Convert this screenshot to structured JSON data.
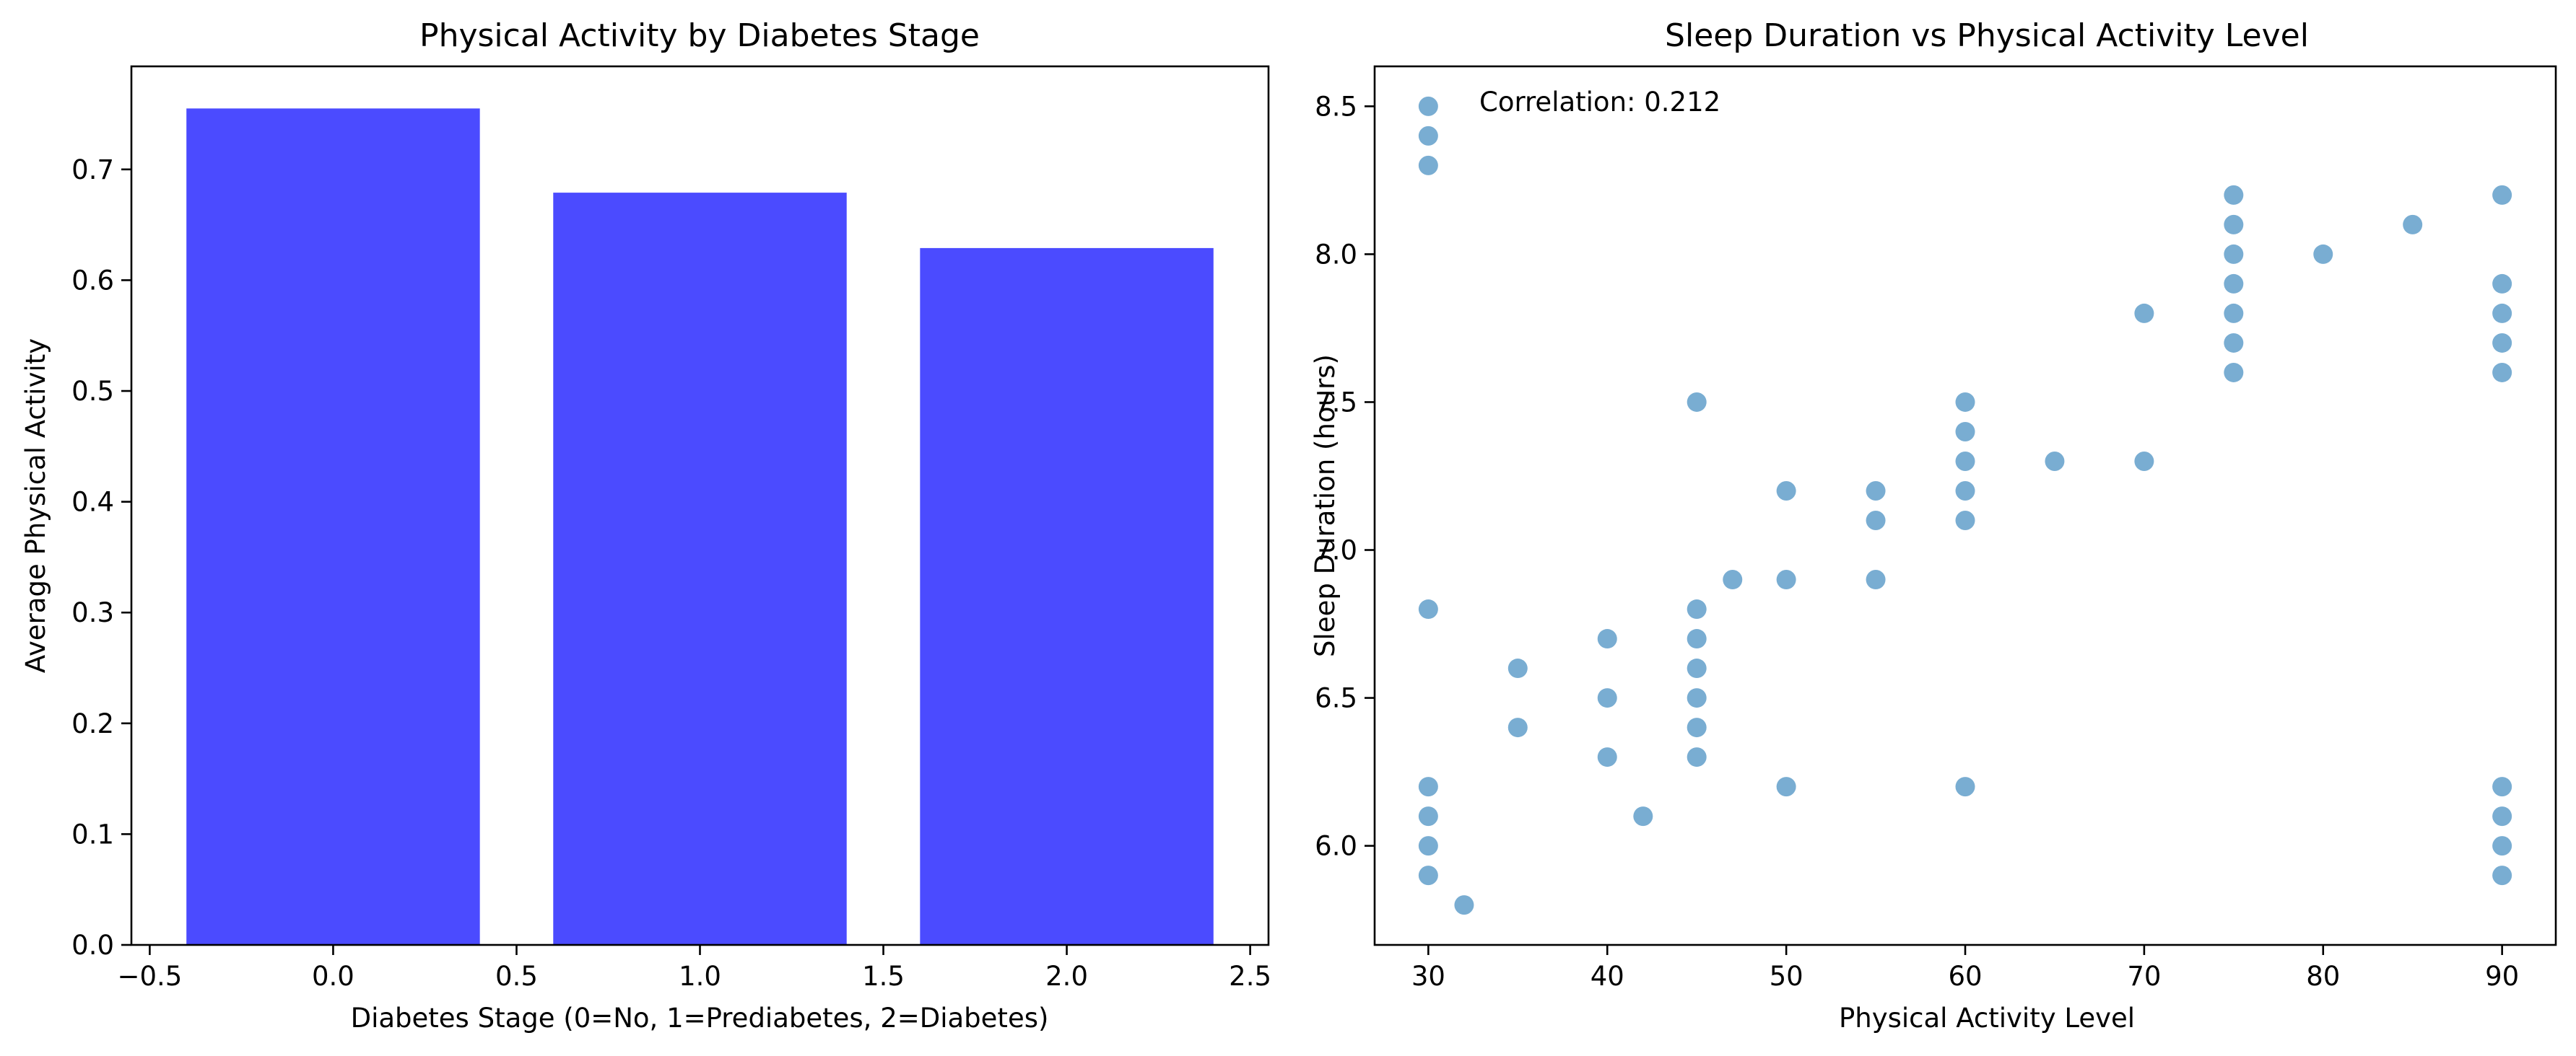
{
  "chart_data": [
    {
      "type": "bar",
      "title": "Physical Activity by Diabetes Stage",
      "xlabel": "Diabetes Stage (0=No, 1=Prediabetes, 2=Diabetes)",
      "ylabel": "Average Physical Activity",
      "x": [
        0,
        1,
        2
      ],
      "values": [
        0.755,
        0.679,
        0.629
      ],
      "bar_width": 0.8,
      "xlim": [
        -0.55,
        2.55
      ],
      "ylim": [
        0,
        0.793
      ],
      "xticks": [
        -0.5,
        0.0,
        0.5,
        1.0,
        1.5,
        2.0,
        2.5
      ],
      "xtick_labels": [
        "−0.5",
        "0.0",
        "0.5",
        "1.0",
        "1.5",
        "2.0",
        "2.5"
      ],
      "yticks": [
        0.0,
        0.1,
        0.2,
        0.3,
        0.4,
        0.5,
        0.6,
        0.7
      ],
      "ytick_labels": [
        "0.0",
        "0.1",
        "0.2",
        "0.3",
        "0.4",
        "0.5",
        "0.6",
        "0.7"
      ],
      "color": "#4b4bff",
      "grid": false
    },
    {
      "type": "scatter",
      "title": "Sleep Duration vs Physical Activity Level",
      "xlabel": "Physical Activity Level",
      "ylabel": "Sleep Duration (hours)",
      "annotation": "Correlation: 0.212",
      "xlim": [
        27,
        93
      ],
      "ylim": [
        5.665,
        8.635
      ],
      "xticks": [
        30,
        40,
        50,
        60,
        70,
        80,
        90
      ],
      "xtick_labels": [
        "30",
        "40",
        "50",
        "60",
        "70",
        "80",
        "90"
      ],
      "yticks": [
        6.0,
        6.5,
        7.0,
        7.5,
        8.0,
        8.5
      ],
      "ytick_labels": [
        "6.0",
        "6.5",
        "7.0",
        "7.5",
        "8.0",
        "8.5"
      ],
      "color": "#1f77b4",
      "grid": false,
      "points": [
        {
          "x": 30,
          "y": 8.5
        },
        {
          "x": 30,
          "y": 8.4
        },
        {
          "x": 30,
          "y": 8.3
        },
        {
          "x": 30,
          "y": 6.8
        },
        {
          "x": 30,
          "y": 6.2
        },
        {
          "x": 30,
          "y": 6.1
        },
        {
          "x": 30,
          "y": 6.0
        },
        {
          "x": 30,
          "y": 5.9
        },
        {
          "x": 32,
          "y": 5.8
        },
        {
          "x": 35,
          "y": 6.6
        },
        {
          "x": 35,
          "y": 6.4
        },
        {
          "x": 40,
          "y": 6.7
        },
        {
          "x": 40,
          "y": 6.5
        },
        {
          "x": 40,
          "y": 6.3
        },
        {
          "x": 42,
          "y": 6.1
        },
        {
          "x": 45,
          "y": 7.5
        },
        {
          "x": 45,
          "y": 6.8
        },
        {
          "x": 45,
          "y": 6.7
        },
        {
          "x": 45,
          "y": 6.6
        },
        {
          "x": 45,
          "y": 6.5
        },
        {
          "x": 45,
          "y": 6.4
        },
        {
          "x": 45,
          "y": 6.3
        },
        {
          "x": 47,
          "y": 6.9
        },
        {
          "x": 50,
          "y": 7.2
        },
        {
          "x": 50,
          "y": 6.9
        },
        {
          "x": 50,
          "y": 6.2
        },
        {
          "x": 55,
          "y": 7.2
        },
        {
          "x": 55,
          "y": 7.1
        },
        {
          "x": 55,
          "y": 6.9
        },
        {
          "x": 60,
          "y": 7.5
        },
        {
          "x": 60,
          "y": 7.4
        },
        {
          "x": 60,
          "y": 7.3
        },
        {
          "x": 60,
          "y": 7.2
        },
        {
          "x": 60,
          "y": 7.1
        },
        {
          "x": 60,
          "y": 6.2
        },
        {
          "x": 65,
          "y": 7.3
        },
        {
          "x": 70,
          "y": 7.8
        },
        {
          "x": 70,
          "y": 7.3
        },
        {
          "x": 75,
          "y": 8.2
        },
        {
          "x": 75,
          "y": 8.1
        },
        {
          "x": 75,
          "y": 8.0
        },
        {
          "x": 75,
          "y": 7.9
        },
        {
          "x": 75,
          "y": 7.8
        },
        {
          "x": 75,
          "y": 7.7
        },
        {
          "x": 75,
          "y": 7.6
        },
        {
          "x": 80,
          "y": 8.0
        },
        {
          "x": 85,
          "y": 8.1
        },
        {
          "x": 90,
          "y": 8.2
        },
        {
          "x": 90,
          "y": 7.9
        },
        {
          "x": 90,
          "y": 7.8
        },
        {
          "x": 90,
          "y": 7.7
        },
        {
          "x": 90,
          "y": 7.6
        },
        {
          "x": 90,
          "y": 6.2
        },
        {
          "x": 90,
          "y": 6.1
        },
        {
          "x": 90,
          "y": 6.0
        },
        {
          "x": 90,
          "y": 5.9
        }
      ]
    }
  ]
}
